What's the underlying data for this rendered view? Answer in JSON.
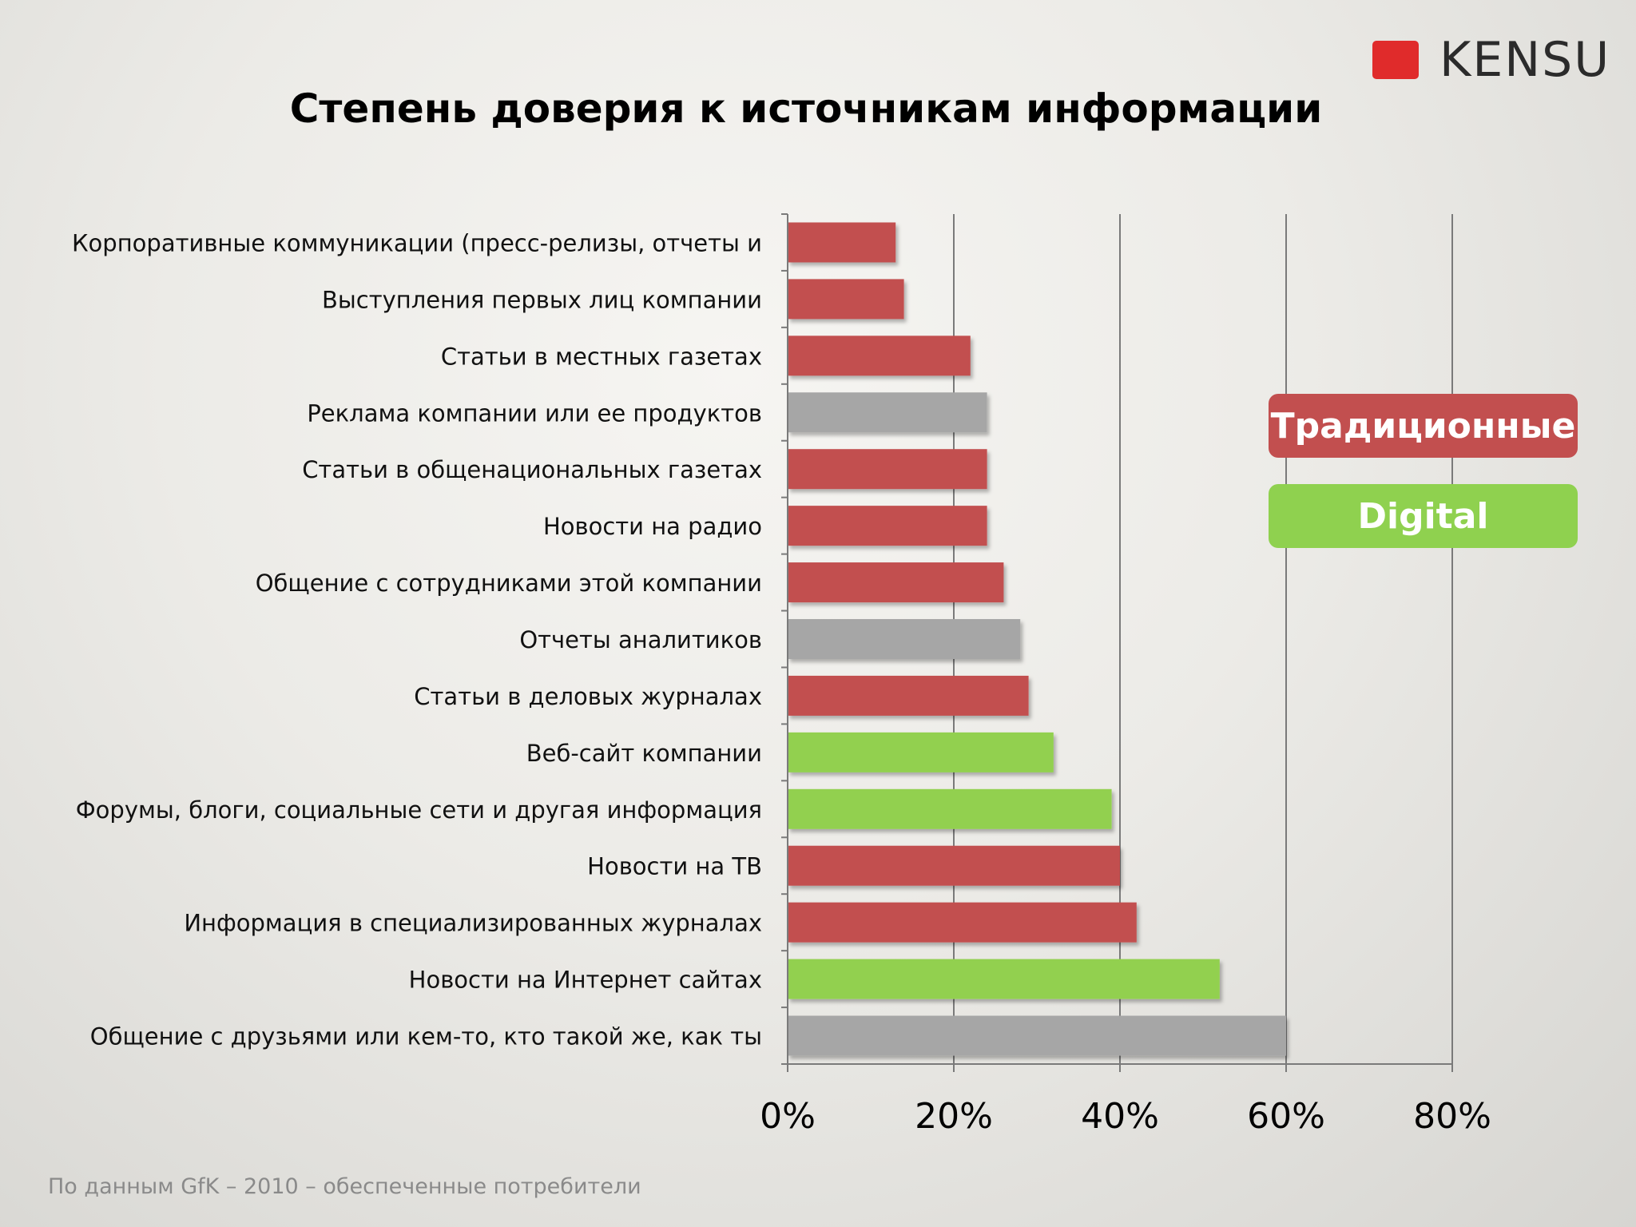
{
  "logo": {
    "text": "KENSU"
  },
  "legend": {
    "traditional": "Традиционные",
    "digital": "Digital"
  },
  "source": "По данным GfK – 2010 – обеспеченные потребители",
  "colors": {
    "traditional": "#c24f4f",
    "digital": "#92d050",
    "other": "#a6a6a6",
    "logo": "#e02b2b"
  },
  "chart_data": {
    "type": "bar",
    "orientation": "horizontal",
    "title": "Степень доверия к источникам информации",
    "xlim": [
      0,
      80
    ],
    "ticks": [
      0,
      20,
      40,
      60,
      80
    ],
    "tick_labels": [
      "0%",
      "20%",
      "40%",
      "60%",
      "80%"
    ],
    "grid": true,
    "legend_position": "right",
    "categories": [
      "Корпоративные коммуникации (пресс-релизы, отчеты и",
      "Выступления первых лиц компании",
      "Статьи в местных газетах",
      "Реклама компании или ее продуктов",
      "Статьи в общенациональных газетах",
      "Новости на радио",
      "Общение с сотрудниками этой компании",
      "Отчеты аналитиков",
      "Статьи в деловых журналах",
      "Веб-сайт компании",
      "Форумы, блоги, социальные сети и другая информация",
      "Новости на ТВ",
      "Информация в специализированных журналах",
      "Новости на Интернет сайтах",
      "Общение с друзьями или кем-то, кто такой же, как ты"
    ],
    "values": [
      13,
      14,
      22,
      24,
      24,
      24,
      26,
      28,
      29,
      32,
      39,
      40,
      42,
      52,
      60
    ],
    "groups": [
      "traditional",
      "traditional",
      "traditional",
      "other",
      "traditional",
      "traditional",
      "traditional",
      "other",
      "traditional",
      "digital",
      "digital",
      "traditional",
      "traditional",
      "digital",
      "other"
    ]
  }
}
